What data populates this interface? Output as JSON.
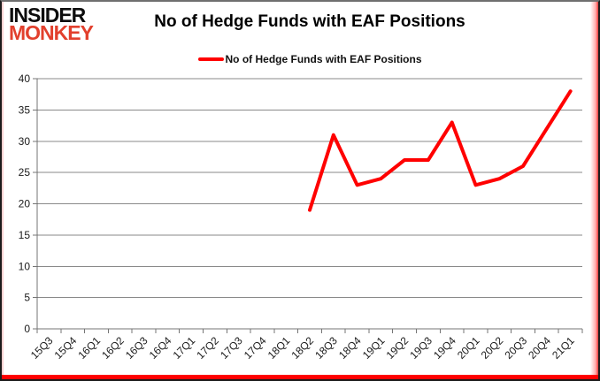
{
  "logo": {
    "line1": "INSIDER",
    "line2": "MONKEY"
  },
  "title": "No of Hedge Funds with EAF Positions",
  "legend": {
    "label": "No of Hedge Funds with EAF Positions",
    "color": "#ff0000"
  },
  "colors": {
    "series_red": "#ff0000",
    "logo_red": "#e2402d",
    "gridline": "#8a8a8a",
    "axis": "#757575",
    "tick_text": "#1a1a1a",
    "bottom_bar": "#ff0000"
  },
  "chart_data": {
    "type": "line",
    "title": "No of Hedge Funds with EAF Positions",
    "categories": [
      "15Q3",
      "15Q4",
      "16Q1",
      "16Q2",
      "16Q3",
      "16Q4",
      "17Q1",
      "17Q2",
      "17Q3",
      "17Q4",
      "18Q1",
      "18Q2",
      "18Q3",
      "18Q4",
      "19Q1",
      "19Q2",
      "19Q3",
      "19Q4",
      "20Q1",
      "20Q2",
      "20Q3",
      "20Q4",
      "21Q1"
    ],
    "series": [
      {
        "name": "No of Hedge Funds with EAF Positions",
        "color": "#ff0000",
        "values": [
          null,
          null,
          null,
          null,
          null,
          null,
          null,
          null,
          null,
          null,
          null,
          19,
          31,
          23,
          24,
          27,
          27,
          33,
          23,
          24,
          26,
          32,
          38
        ]
      }
    ],
    "xlabel": "",
    "ylabel": "",
    "ylim": [
      0,
      40
    ],
    "ytick_step": 5,
    "yticks": [
      0,
      5,
      10,
      15,
      20,
      25,
      30,
      35,
      40
    ],
    "grid": true,
    "legend_position": "top",
    "x_tick_rotation": -45
  }
}
